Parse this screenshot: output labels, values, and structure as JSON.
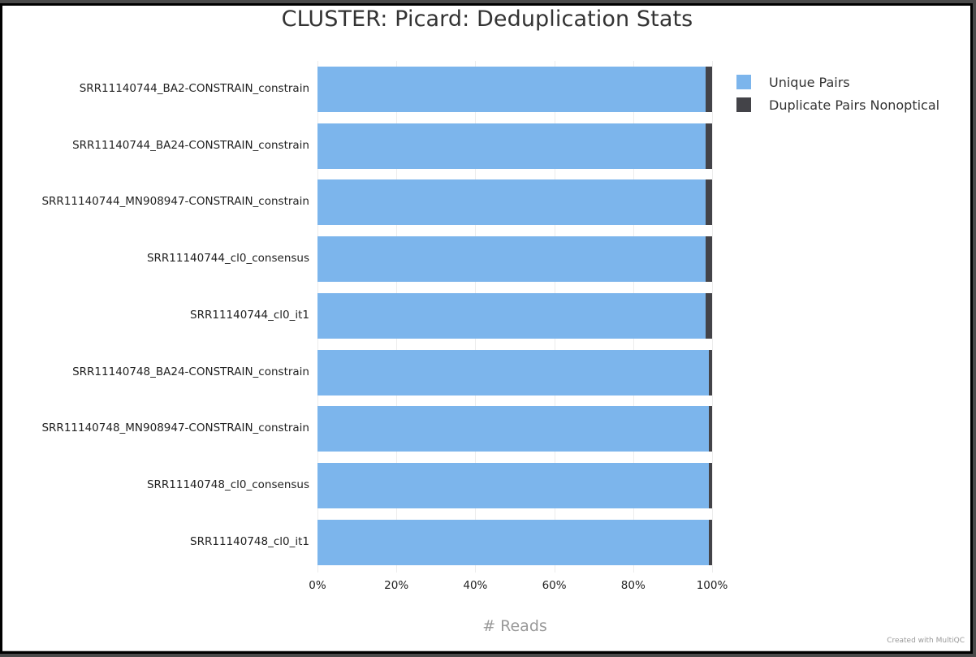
{
  "title": "CLUSTER: Picard: Deduplication Stats",
  "credit": "Created with MultiQC",
  "colors": {
    "unique": "#7cb5ec",
    "duplicate": "#434348",
    "grid": "#ececec"
  },
  "legend": [
    {
      "label": "Unique Pairs",
      "color": "#7cb5ec"
    },
    {
      "label": "Duplicate Pairs Nonoptical",
      "color": "#434348"
    }
  ],
  "x_ticks": [
    "0%",
    "20%",
    "40%",
    "60%",
    "80%",
    "100%"
  ],
  "x_label": "# Reads",
  "chart_data": {
    "type": "bar",
    "orientation": "horizontal",
    "stacked": true,
    "percent": true,
    "title": "CLUSTER: Picard: Deduplication Stats",
    "xlabel": "# Reads",
    "ylabel": "",
    "xlim": [
      0,
      100
    ],
    "x_tick_labels": [
      "0%",
      "20%",
      "40%",
      "60%",
      "80%",
      "100%"
    ],
    "grid": true,
    "legend_position": "top-right",
    "categories": [
      "SRR11140744_BA2-CONSTRAIN_constrain",
      "SRR11140744_BA24-CONSTRAIN_constrain",
      "SRR11140744_MN908947-CONSTRAIN_constrain",
      "SRR11140744_cl0_consensus",
      "SRR11140744_cl0_it1",
      "SRR11140748_BA24-CONSTRAIN_constrain",
      "SRR11140748_MN908947-CONSTRAIN_constrain",
      "SRR11140748_cl0_consensus",
      "SRR11140748_cl0_it1"
    ],
    "series": [
      {
        "name": "Unique Pairs",
        "color": "#7cb5ec",
        "values": [
          98.4,
          98.4,
          98.4,
          98.4,
          98.4,
          99.2,
          99.2,
          99.2,
          99.2
        ]
      },
      {
        "name": "Duplicate Pairs Nonoptical",
        "color": "#434348",
        "values": [
          1.6,
          1.6,
          1.6,
          1.6,
          1.6,
          0.8,
          0.8,
          0.8,
          0.8
        ]
      }
    ]
  }
}
